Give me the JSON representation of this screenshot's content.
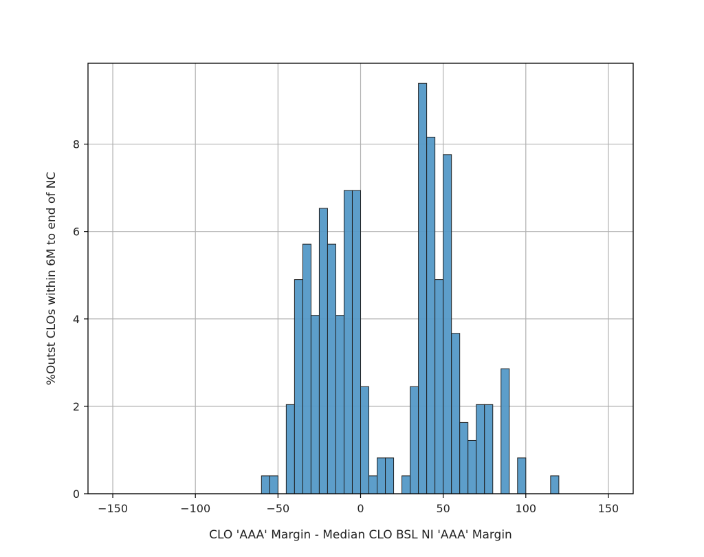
{
  "chart_data": {
    "type": "bar",
    "title": "",
    "xlabel": "CLO 'AAA' Margin - Median CLO BSL NI 'AAA' Margin",
    "ylabel": "%Outst CLOs within 6M to end of NC",
    "xlim": [
      -165,
      165
    ],
    "ylim": [
      0,
      9.85
    ],
    "bin_width": 5,
    "xticks": [
      -150,
      -100,
      -50,
      0,
      50,
      100,
      150
    ],
    "xtick_labels": [
      "−150",
      "−100",
      "−50",
      "0",
      "50",
      "100",
      "150"
    ],
    "yticks": [
      0,
      2,
      4,
      6,
      8
    ],
    "ytick_labels": [
      "0",
      "2",
      "4",
      "6",
      "8"
    ],
    "grid": true,
    "legend": "none",
    "bar_color": "#5499c7",
    "edge_color": "#1f1f1f",
    "bins": [
      {
        "x": -60,
        "value": 0.41
      },
      {
        "x": -55,
        "value": 0.41
      },
      {
        "x": -45,
        "value": 2.04
      },
      {
        "x": -40,
        "value": 4.9
      },
      {
        "x": -35,
        "value": 5.71
      },
      {
        "x": -30,
        "value": 4.08
      },
      {
        "x": -25,
        "value": 6.53
      },
      {
        "x": -20,
        "value": 5.71
      },
      {
        "x": -15,
        "value": 4.08
      },
      {
        "x": -10,
        "value": 6.94
      },
      {
        "x": -5,
        "value": 6.94
      },
      {
        "x": 0,
        "value": 2.45
      },
      {
        "x": 5,
        "value": 0.41
      },
      {
        "x": 10,
        "value": 0.82
      },
      {
        "x": 15,
        "value": 0.82
      },
      {
        "x": 25,
        "value": 0.41
      },
      {
        "x": 30,
        "value": 2.45
      },
      {
        "x": 35,
        "value": 9.39
      },
      {
        "x": 40,
        "value": 8.16
      },
      {
        "x": 45,
        "value": 4.9
      },
      {
        "x": 50,
        "value": 7.76
      },
      {
        "x": 55,
        "value": 3.67
      },
      {
        "x": 60,
        "value": 1.63
      },
      {
        "x": 65,
        "value": 1.22
      },
      {
        "x": 70,
        "value": 2.04
      },
      {
        "x": 75,
        "value": 2.04
      },
      {
        "x": 85,
        "value": 2.86
      },
      {
        "x": 95,
        "value": 0.82
      },
      {
        "x": 115,
        "value": 0.41
      }
    ]
  }
}
